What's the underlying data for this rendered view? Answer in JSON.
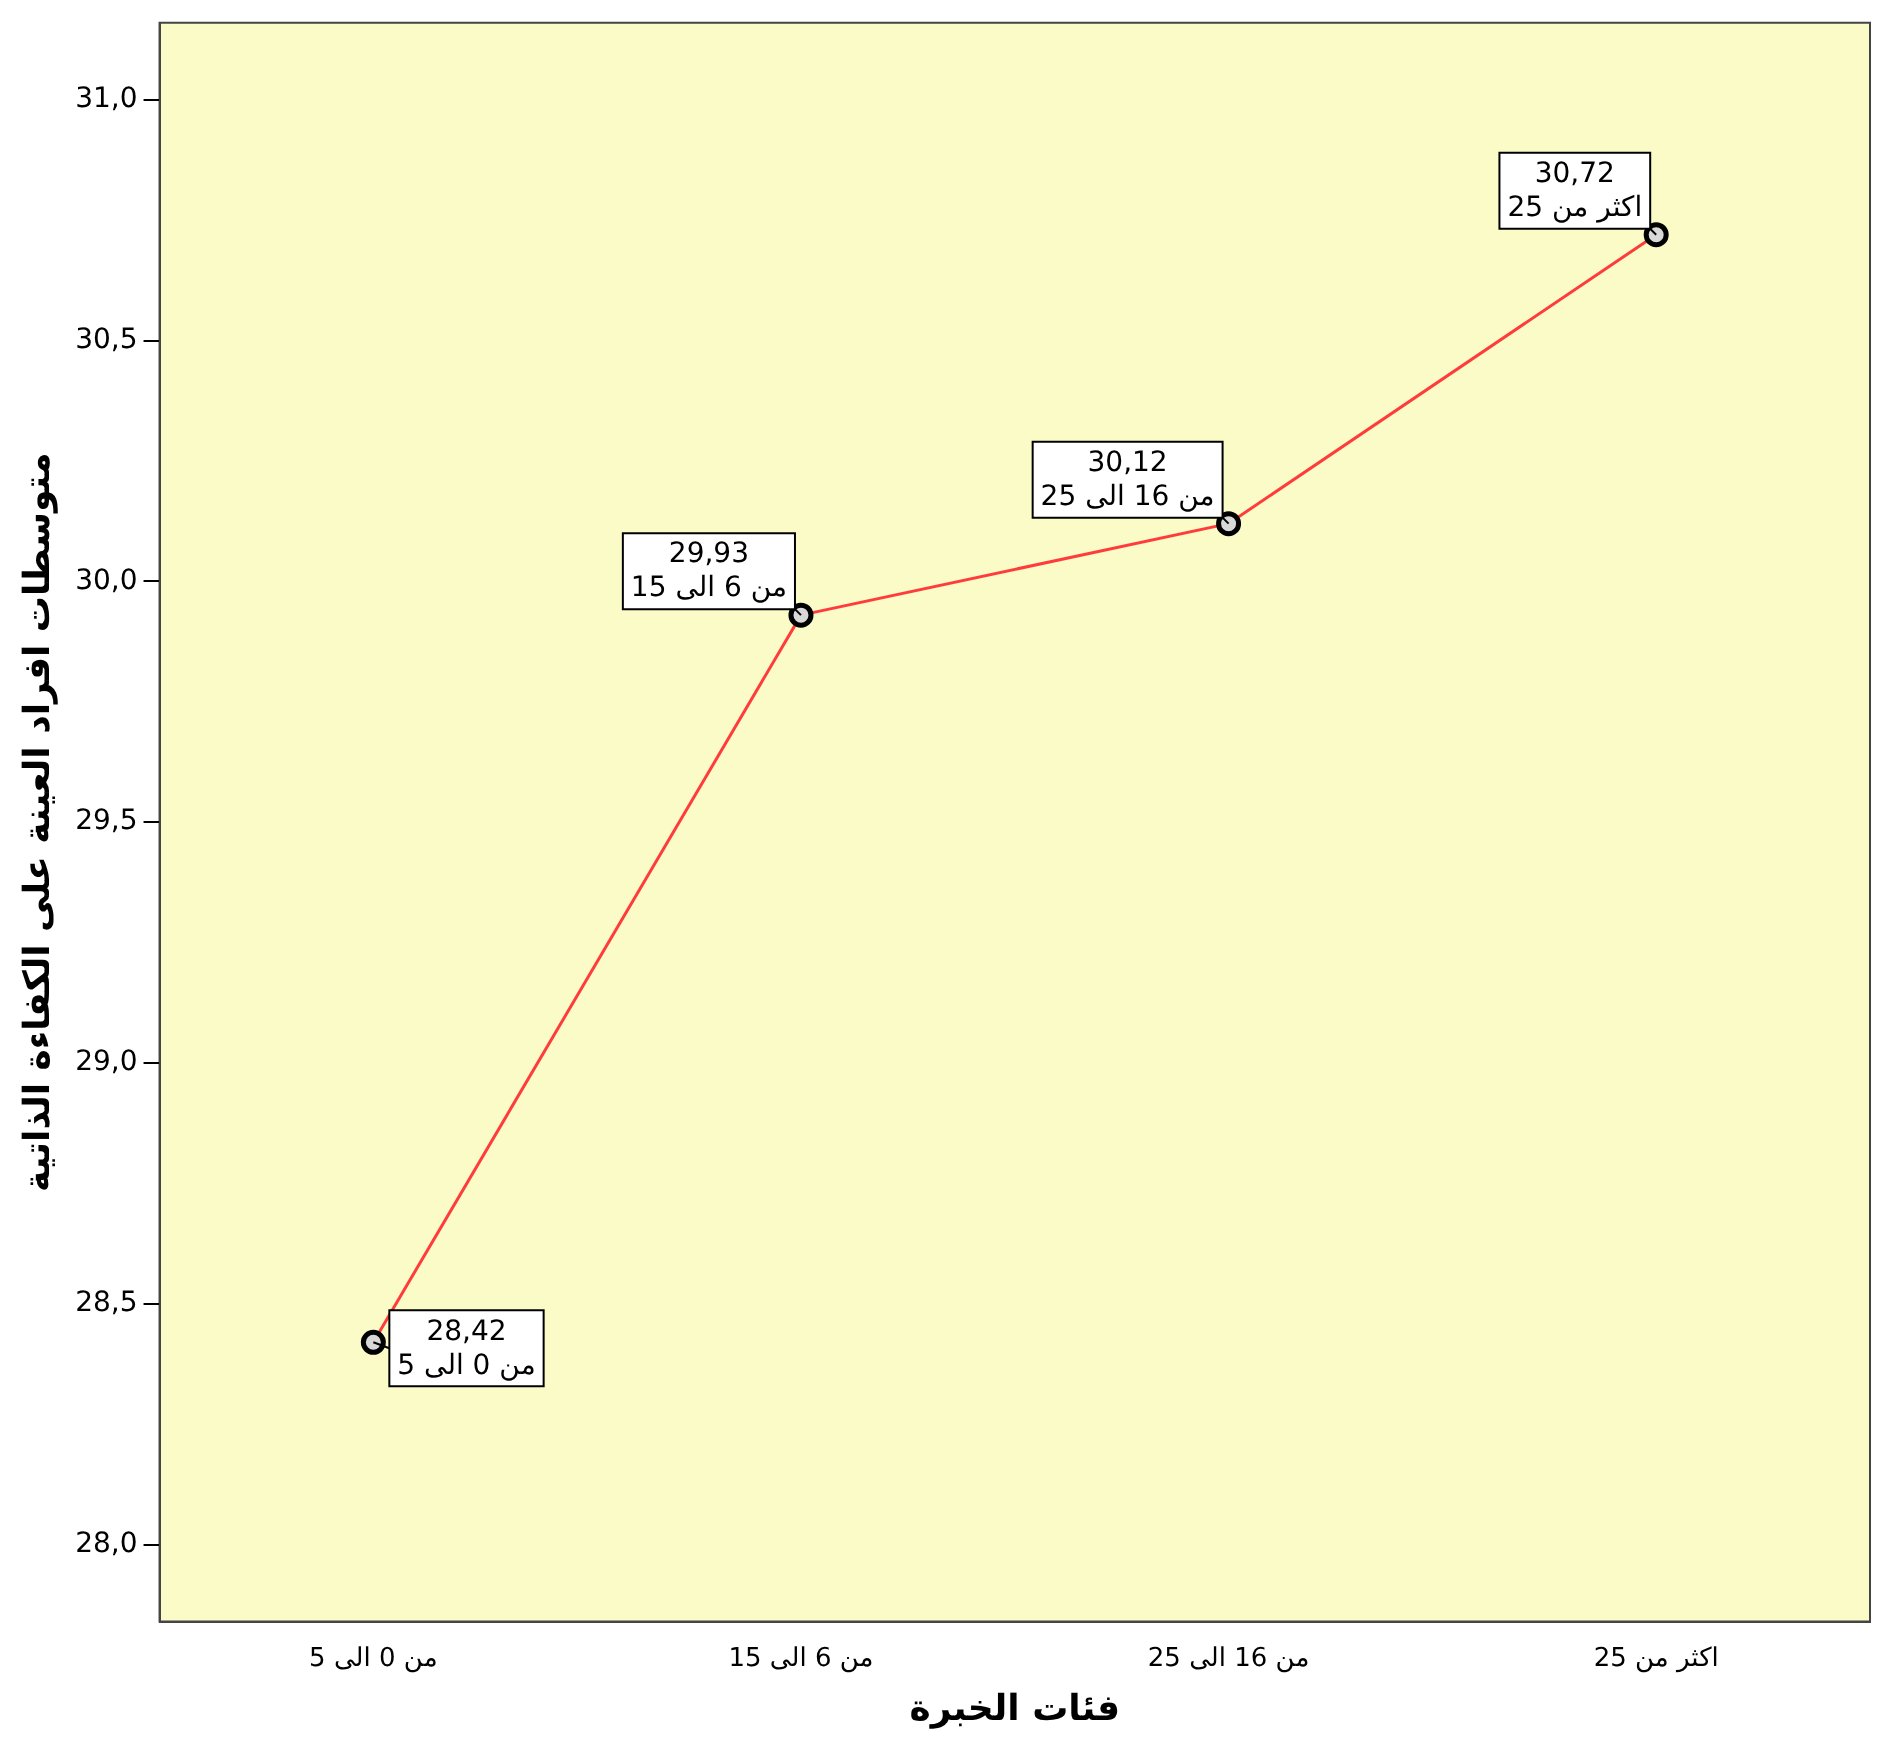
{
  "chart_data": {
    "type": "line",
    "xlabel": "فئات الخبرة",
    "ylabel": "متوسطات افراد العينة على الكفاءة الذاتية",
    "categories": [
      "من 0 الى 5",
      "من 6 الى 15",
      "من 16 الى 25",
      "اكثر من 25"
    ],
    "series": [
      {
        "color": "#ff3c3c",
        "values": [
          28.42,
          29.93,
          30.12,
          30.72
        ],
        "value_labels": [
          "28,42",
          "29,93",
          "30,12",
          "30,72"
        ]
      }
    ],
    "ylim": [
      27.84,
      31.16
    ],
    "yticks": [
      {
        "value": 28,
        "label": "28,0"
      },
      {
        "value": 28.5,
        "label": "28,5"
      },
      {
        "value": 29,
        "label": "29,0"
      },
      {
        "value": 29.5,
        "label": "29,5"
      },
      {
        "value": 30,
        "label": "30,0"
      },
      {
        "value": 30.5,
        "label": "30,5"
      },
      {
        "value": 31,
        "label": "31,0"
      }
    ],
    "grid": false,
    "legend": false,
    "marker": "circle",
    "line_style": "solid"
  }
}
